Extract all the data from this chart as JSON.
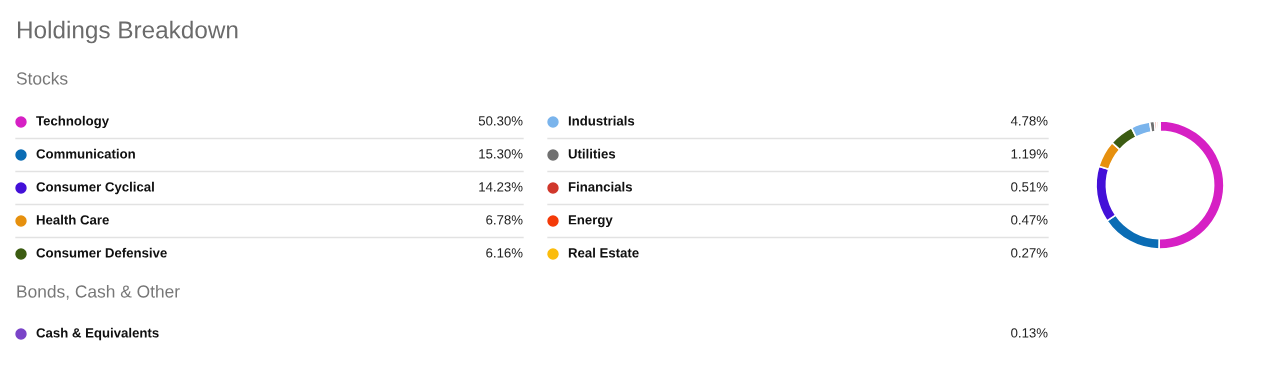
{
  "chart_data": {
    "type": "donut",
    "title": "Holdings Breakdown",
    "subtitle": "Stocks",
    "annotations": [
      "Bonds, Cash & Other"
    ],
    "categories": [
      "Technology",
      "Communication",
      "Consumer Cyclical",
      "Health Care",
      "Consumer Defensive",
      "Industrials",
      "Utilities",
      "Financials",
      "Energy",
      "Real Estate",
      "Cash & Equivalents"
    ],
    "values": [
      50.3,
      15.3,
      14.23,
      6.78,
      6.16,
      4.78,
      1.19,
      0.51,
      0.47,
      0.27,
      0.13
    ],
    "colors": [
      "#d620c4",
      "#0a6cb4",
      "#4310d8",
      "#e6900e",
      "#3c5c12",
      "#7ab4ec",
      "#707070",
      "#d0372b",
      "#f43a08",
      "#fbbc0c",
      "#7a44c8"
    ],
    "value_labels": [
      "50.30%",
      "15.30%",
      "14.23%",
      "6.78%",
      "6.16%",
      "4.78%",
      "1.19%",
      "0.51%",
      "0.47%",
      "0.27%",
      "0.13%"
    ],
    "legend": "left"
  }
}
